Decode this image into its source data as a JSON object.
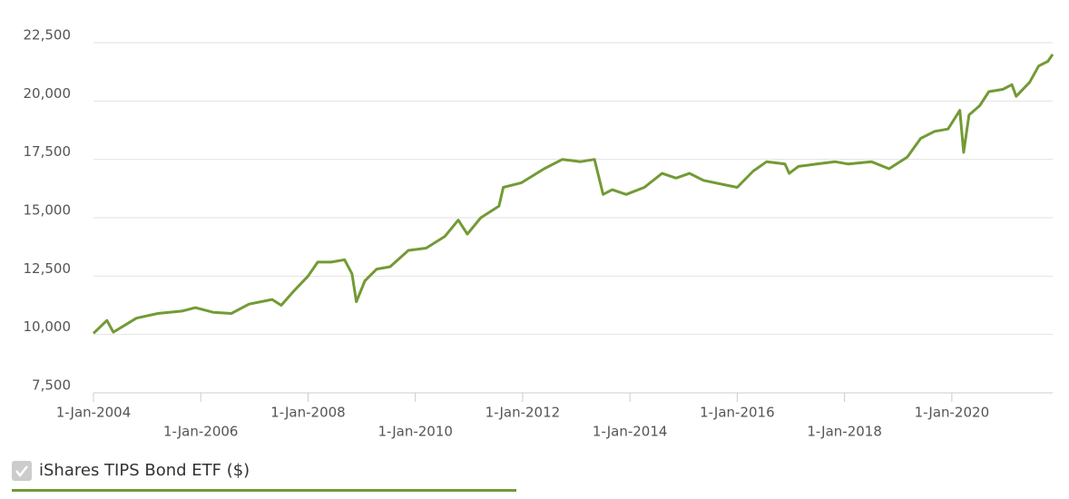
{
  "chart_data": {
    "type": "line",
    "x": [
      2004.0,
      2004.25,
      2004.37,
      2004.8,
      2005.2,
      2005.65,
      2005.9,
      2006.23,
      2006.57,
      2006.9,
      2007.33,
      2007.5,
      2007.75,
      2008.0,
      2008.18,
      2008.43,
      2008.68,
      2008.82,
      2008.9,
      2009.06,
      2009.28,
      2009.53,
      2009.87,
      2010.2,
      2010.55,
      2010.8,
      2010.97,
      2011.22,
      2011.56,
      2011.64,
      2011.98,
      2012.4,
      2012.74,
      2013.08,
      2013.34,
      2013.5,
      2013.67,
      2013.93,
      2014.27,
      2014.6,
      2014.86,
      2015.11,
      2015.37,
      2015.79,
      2016.0,
      2016.3,
      2016.55,
      2016.89,
      2016.97,
      2017.14,
      2017.48,
      2017.82,
      2018.07,
      2018.5,
      2018.83,
      2019.17,
      2019.42,
      2019.68,
      2019.93,
      2020.15,
      2020.22,
      2020.32,
      2020.52,
      2020.69,
      2020.95,
      2021.12,
      2021.2,
      2021.45,
      2021.62,
      2021.79,
      2021.88
    ],
    "series": [
      {
        "name": "iShares TIPS Bond ETF ($)",
        "color": "#739a35",
        "values": [
          10050,
          10600,
          10100,
          10700,
          10900,
          11000,
          11150,
          10950,
          10900,
          11300,
          11500,
          11250,
          11900,
          12500,
          13100,
          13100,
          13200,
          12600,
          11400,
          12300,
          12800,
          12900,
          13600,
          13700,
          14200,
          14900,
          14300,
          15000,
          15500,
          16300,
          16500,
          17100,
          17500,
          17400,
          17500,
          16000,
          16200,
          16000,
          16300,
          16900,
          16700,
          16900,
          16600,
          16400,
          16300,
          17000,
          17400,
          17300,
          16900,
          17200,
          17300,
          17400,
          17300,
          17400,
          17100,
          17600,
          18400,
          18700,
          18800,
          19600,
          17800,
          19400,
          19800,
          20400,
          20500,
          20700,
          20200,
          20800,
          21500,
          21700,
          22000
        ]
      }
    ],
    "xlim": [
      2004,
      2021.88
    ],
    "xticks": [
      {
        "value": 2004,
        "label": "1-Jan-2004"
      },
      {
        "value": 2006,
        "label": "1-Jan-2006"
      },
      {
        "value": 2008,
        "label": "1-Jan-2008"
      },
      {
        "value": 2010,
        "label": "1-Jan-2010"
      },
      {
        "value": 2012,
        "label": "1-Jan-2012"
      },
      {
        "value": 2014,
        "label": "1-Jan-2014"
      },
      {
        "value": 2016,
        "label": "1-Jan-2016"
      },
      {
        "value": 2018,
        "label": "1-Jan-2018"
      },
      {
        "value": 2020,
        "label": "1-Jan-2020"
      }
    ],
    "ylim": [
      7500,
      22500
    ],
    "yticks": [
      {
        "value": 7500,
        "label": "7,500"
      },
      {
        "value": 10000,
        "label": "10,000"
      },
      {
        "value": 12500,
        "label": "12,500"
      },
      {
        "value": 15000,
        "label": "15,000"
      },
      {
        "value": 17500,
        "label": "17,500"
      },
      {
        "value": 20000,
        "label": "20,000"
      },
      {
        "value": 22500,
        "label": "22,500"
      }
    ],
    "grid": true
  }
}
